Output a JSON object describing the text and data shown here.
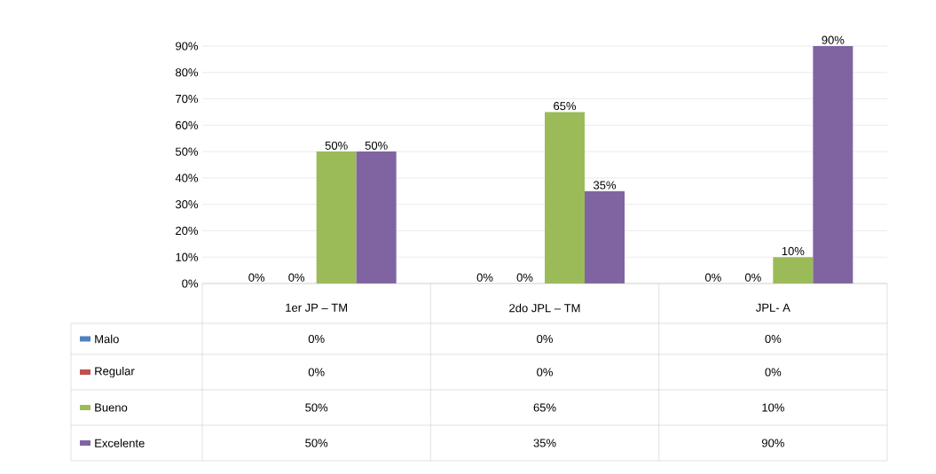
{
  "chart_data": {
    "type": "bar",
    "categories": [
      "1er JP – TM",
      "2do JPL – TM",
      "JPL- A"
    ],
    "series": [
      {
        "name": "Malo",
        "color": "#4f81bd",
        "values": [
          0,
          0,
          0
        ],
        "value_labels": [
          "0%",
          "0%",
          "0%"
        ]
      },
      {
        "name": "Regular",
        "color": "#c0504d",
        "values": [
          0,
          0,
          0
        ],
        "value_labels": [
          "0%",
          "0%",
          "0%"
        ]
      },
      {
        "name": "Bueno",
        "color": "#9bbb59",
        "values": [
          50,
          65,
          10
        ],
        "value_labels": [
          "50%",
          "65%",
          "10%"
        ]
      },
      {
        "name": "Excelente",
        "color": "#8064a2",
        "values": [
          50,
          35,
          90
        ],
        "value_labels": [
          "50%",
          "35%",
          "90%"
        ]
      }
    ],
    "ylim": [
      0,
      90
    ],
    "yticks": [
      {
        "value": 0,
        "label": "0%"
      },
      {
        "value": 10,
        "label": "10%"
      },
      {
        "value": 20,
        "label": "20%"
      },
      {
        "value": 30,
        "label": "30%"
      },
      {
        "value": 40,
        "label": "40%"
      },
      {
        "value": 50,
        "label": "50%"
      },
      {
        "value": 60,
        "label": "60%"
      },
      {
        "value": 70,
        "label": "70%"
      },
      {
        "value": 80,
        "label": "80%"
      },
      {
        "value": 90,
        "label": "90%"
      }
    ],
    "grid": "y",
    "legend": "bottom"
  }
}
